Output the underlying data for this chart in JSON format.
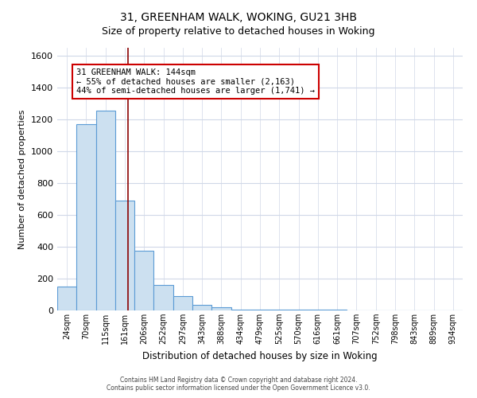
{
  "title": "31, GREENHAM WALK, WOKING, GU21 3HB",
  "subtitle": "Size of property relative to detached houses in Woking",
  "xlabel": "Distribution of detached houses by size in Woking",
  "ylabel": "Number of detached properties",
  "bar_labels": [
    "24sqm",
    "70sqm",
    "115sqm",
    "161sqm",
    "206sqm",
    "252sqm",
    "297sqm",
    "343sqm",
    "388sqm",
    "434sqm",
    "479sqm",
    "525sqm",
    "570sqm",
    "616sqm",
    "661sqm",
    "707sqm",
    "752sqm",
    "798sqm",
    "843sqm",
    "889sqm",
    "934sqm"
  ],
  "bar_values": [
    150,
    1170,
    1255,
    690,
    375,
    160,
    90,
    35,
    20,
    5,
    3,
    3,
    3,
    3,
    3,
    0,
    0,
    0,
    0,
    0,
    0
  ],
  "bar_color": "#cce0f0",
  "bar_edge_color": "#5b9bd5",
  "property_line_label": "31 GREENHAM WALK: 144sqm",
  "annotation_line1": "← 55% of detached houses are smaller (2,163)",
  "annotation_line2": "44% of semi-detached houses are larger (1,741) →",
  "annotation_box_color": "#ffffff",
  "annotation_box_edge_color": "#cc0000",
  "redline_color": "#8b0000",
  "redline_x": 3.15,
  "ylim": [
    0,
    1650
  ],
  "yticks": [
    0,
    200,
    400,
    600,
    800,
    1000,
    1200,
    1400,
    1600
  ],
  "footer_line1": "Contains HM Land Registry data © Crown copyright and database right 2024.",
  "footer_line2": "Contains public sector information licensed under the Open Government Licence v3.0.",
  "bg_color": "#ffffff",
  "grid_color": "#d0d8e8"
}
